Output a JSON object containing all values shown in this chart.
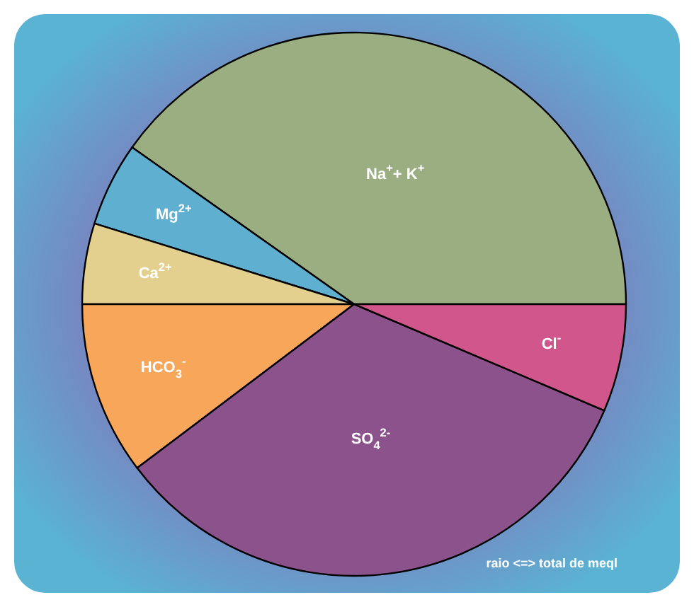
{
  "chart_data": {
    "type": "pie",
    "categories": [
      "Na$^{+}$+ K$^{+}$",
      "Mg$^{2+}$",
      "Ca$^{2+}$",
      "HCO$_{3}$$^{-}$",
      "SO$_{4}$$^{2-}$",
      "Cl$^{-}$"
    ],
    "values": [
      40.2,
      5.0,
      4.8,
      10.3,
      33.3,
      6.4
    ],
    "colors": [
      "#9aae82",
      "#5fb0d0",
      "#e3d08f",
      "#f7a65a",
      "#8b528b",
      "#d0568c"
    ],
    "annotations": [
      "raio <=> total de meql"
    ]
  }
}
